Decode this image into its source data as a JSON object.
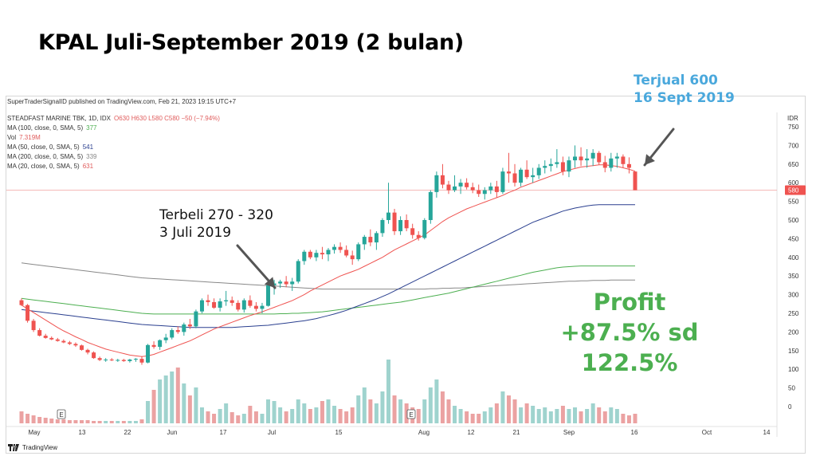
{
  "slide_title": "KPAL Juli-September 2019 (2 bulan)",
  "publish_line": "SuperTraderSignalID published on TradingView.com, Feb 21, 2023 19:15 UTC+7",
  "annotations": {
    "sell_line1": "Terjual 600",
    "sell_line2": "16 Sept 2019",
    "buy_line1": "Terbeli 270 - 320",
    "buy_line2": "3 Juli 2019",
    "profit_line1": "Profit",
    "profit_line2": "+87.5% sd 122.5%"
  },
  "legend": [
    {
      "label": "STEADFAST MARINE TBK, 1D, IDX",
      "value": "O630 H630 L580 C580 −50 (−7.94%)",
      "color": "#e05c5c"
    },
    {
      "label": "MA (100, close, 0, SMA, 5)",
      "value": "377",
      "color": "#4caf50"
    },
    {
      "label": "Vol",
      "value": "7.319M",
      "color": "#e05c5c"
    },
    {
      "label": "MA (50, close, 0, SMA, 5)",
      "value": "541",
      "color": "#2a3f8f"
    },
    {
      "label": "MA (200, close, 0, SMA, 5)",
      "value": "339",
      "color": "#888888"
    },
    {
      "label": "MA (20, close, 0, SMA, 5)",
      "value": "631",
      "color": "#e05c5c"
    }
  ],
  "brand": "TradingView",
  "colors": {
    "up": "#26a69a",
    "down": "#ef5350",
    "ma20": "#ef5350",
    "ma50": "#2a3f8f",
    "ma100": "#4caf50",
    "ma200": "#888888",
    "vol_up": "#9fd3ce",
    "vol_down": "#eba2a2",
    "last_price_tag": "#ef5350"
  },
  "chart_data": {
    "type": "candlestick",
    "currency": "IDR",
    "y_ticks": [
      750,
      700,
      650,
      600,
      550,
      500,
      450,
      400,
      350,
      300,
      250,
      200,
      150,
      100,
      50,
      0
    ],
    "ylim": [
      0,
      750
    ],
    "last_price": 580,
    "x_ticks": [
      "May",
      "13",
      "22",
      "Jun",
      "17",
      "Jul",
      "15",
      "Aug",
      "12",
      "21",
      "Sep",
      "16",
      "Oct",
      "14"
    ],
    "event_markers": [
      "E",
      "E"
    ],
    "ohlc": [
      [
        285,
        290,
        270,
        272
      ],
      [
        272,
        275,
        225,
        230
      ],
      [
        230,
        235,
        200,
        205
      ],
      [
        205,
        210,
        188,
        190
      ],
      [
        190,
        195,
        182,
        184
      ],
      [
        184,
        188,
        178,
        180
      ],
      [
        180,
        184,
        174,
        176
      ],
      [
        176,
        180,
        170,
        172
      ],
      [
        172,
        176,
        165,
        168
      ],
      [
        168,
        172,
        160,
        164
      ],
      [
        164,
        166,
        150,
        152
      ],
      [
        152,
        155,
        140,
        145
      ],
      [
        145,
        148,
        128,
        130
      ],
      [
        130,
        134,
        122,
        125
      ],
      [
        125,
        130,
        120,
        126
      ],
      [
        126,
        130,
        122,
        124
      ],
      [
        124,
        128,
        120,
        125
      ],
      [
        125,
        128,
        120,
        122
      ],
      [
        122,
        128,
        118,
        126
      ],
      [
        126,
        130,
        120,
        128
      ],
      [
        128,
        135,
        112,
        118
      ],
      [
        118,
        168,
        116,
        165
      ],
      [
        165,
        175,
        155,
        160
      ],
      [
        160,
        180,
        152,
        178
      ],
      [
        178,
        195,
        170,
        185
      ],
      [
        185,
        210,
        180,
        205
      ],
      [
        205,
        215,
        195,
        200
      ],
      [
        200,
        225,
        190,
        220
      ],
      [
        220,
        235,
        208,
        215
      ],
      [
        215,
        260,
        210,
        255
      ],
      [
        255,
        290,
        250,
        285
      ],
      [
        285,
        300,
        270,
        280
      ],
      [
        280,
        290,
        262,
        265
      ],
      [
        265,
        290,
        255,
        282
      ],
      [
        282,
        310,
        270,
        285
      ],
      [
        285,
        295,
        270,
        278
      ],
      [
        278,
        285,
        255,
        260
      ],
      [
        260,
        290,
        252,
        285
      ],
      [
        285,
        298,
        265,
        270
      ],
      [
        270,
        280,
        255,
        262
      ],
      [
        262,
        278,
        250,
        270
      ],
      [
        270,
        330,
        268,
        325
      ],
      [
        325,
        340,
        300,
        330
      ],
      [
        330,
        340,
        318,
        335
      ],
      [
        335,
        350,
        320,
        328
      ],
      [
        328,
        345,
        310,
        335
      ],
      [
        335,
        395,
        330,
        390
      ],
      [
        390,
        420,
        380,
        415
      ],
      [
        415,
        420,
        395,
        400
      ],
      [
        400,
        420,
        390,
        412
      ],
      [
        412,
        428,
        395,
        408
      ],
      [
        408,
        425,
        390,
        420
      ],
      [
        420,
        435,
        410,
        428
      ],
      [
        428,
        440,
        412,
        420
      ],
      [
        420,
        432,
        400,
        405
      ],
      [
        405,
        418,
        380,
        395
      ],
      [
        395,
        440,
        390,
        435
      ],
      [
        435,
        460,
        420,
        455
      ],
      [
        455,
        475,
        430,
        440
      ],
      [
        440,
        470,
        420,
        465
      ],
      [
        465,
        505,
        455,
        500
      ],
      [
        500,
        600,
        490,
        520
      ],
      [
        520,
        530,
        460,
        470
      ],
      [
        470,
        510,
        460,
        500
      ],
      [
        500,
        515,
        470,
        478
      ],
      [
        478,
        490,
        450,
        460
      ],
      [
        460,
        470,
        445,
        452
      ],
      [
        452,
        505,
        448,
        500
      ],
      [
        500,
        580,
        490,
        575
      ],
      [
        575,
        630,
        560,
        620
      ],
      [
        620,
        650,
        585,
        595
      ],
      [
        595,
        605,
        570,
        580
      ],
      [
        580,
        620,
        575,
        590
      ],
      [
        590,
        610,
        570,
        600
      ],
      [
        600,
        612,
        582,
        588
      ],
      [
        588,
        600,
        572,
        580
      ],
      [
        580,
        595,
        562,
        570
      ],
      [
        570,
        588,
        555,
        580
      ],
      [
        580,
        600,
        570,
        590
      ],
      [
        590,
        605,
        560,
        575
      ],
      [
        575,
        640,
        570,
        630
      ],
      [
        630,
        680,
        600,
        625
      ],
      [
        625,
        650,
        590,
        600
      ],
      [
        600,
        640,
        590,
        635
      ],
      [
        635,
        660,
        610,
        615
      ],
      [
        615,
        640,
        600,
        620
      ],
      [
        620,
        650,
        610,
        640
      ],
      [
        640,
        660,
        625,
        645
      ],
      [
        645,
        665,
        630,
        650
      ],
      [
        650,
        690,
        640,
        655
      ],
      [
        655,
        670,
        620,
        630
      ],
      [
        630,
        670,
        615,
        660
      ],
      [
        660,
        700,
        640,
        670
      ],
      [
        670,
        695,
        645,
        660
      ],
      [
        660,
        690,
        640,
        665
      ],
      [
        665,
        690,
        645,
        680
      ],
      [
        680,
        685,
        648,
        655
      ],
      [
        655,
        672,
        628,
        640
      ],
      [
        640,
        680,
        630,
        665
      ],
      [
        665,
        680,
        640,
        670
      ],
      [
        670,
        676,
        640,
        650
      ],
      [
        650,
        668,
        625,
        640
      ],
      [
        630,
        630,
        580,
        580
      ]
    ],
    "volume_relative": [
      0.15,
      0.12,
      0.1,
      0.08,
      0.07,
      0.06,
      0.05,
      0.05,
      0.04,
      0.04,
      0.04,
      0.04,
      0.03,
      0.03,
      0.03,
      0.03,
      0.03,
      0.03,
      0.03,
      0.03,
      0.05,
      0.28,
      0.42,
      0.55,
      0.6,
      0.65,
      0.7,
      0.5,
      0.35,
      0.45,
      0.2,
      0.15,
      0.12,
      0.18,
      0.25,
      0.14,
      0.1,
      0.12,
      0.22,
      0.15,
      0.12,
      0.3,
      0.28,
      0.2,
      0.15,
      0.18,
      0.3,
      0.25,
      0.18,
      0.2,
      0.28,
      0.3,
      0.22,
      0.18,
      0.15,
      0.2,
      0.35,
      0.45,
      0.3,
      0.25,
      0.4,
      0.8,
      0.35,
      0.3,
      0.25,
      0.2,
      0.18,
      0.3,
      0.45,
      0.55,
      0.4,
      0.3,
      0.22,
      0.18,
      0.15,
      0.12,
      0.12,
      0.15,
      0.2,
      0.25,
      0.4,
      0.35,
      0.3,
      0.2,
      0.25,
      0.22,
      0.18,
      0.2,
      0.15,
      0.18,
      0.22,
      0.18,
      0.2,
      0.15,
      0.18,
      0.25,
      0.2,
      0.15,
      0.2,
      0.18,
      0.12,
      0.1,
      0.12
    ],
    "ma20": [
      272,
      262,
      252,
      242,
      232,
      222,
      212,
      203,
      195,
      187,
      180,
      172,
      166,
      160,
      154,
      150,
      146,
      142,
      138,
      136,
      134,
      136,
      140,
      146,
      152,
      158,
      164,
      170,
      176,
      184,
      192,
      200,
      208,
      214,
      220,
      226,
      232,
      238,
      244,
      249,
      254,
      260,
      266,
      272,
      278,
      284,
      292,
      300,
      310,
      318,
      326,
      334,
      342,
      350,
      356,
      362,
      368,
      376,
      384,
      392,
      400,
      410,
      420,
      428,
      436,
      444,
      452,
      460,
      472,
      484,
      496,
      506,
      514,
      522,
      530,
      536,
      542,
      548,
      554,
      560,
      566,
      574,
      580,
      588,
      594,
      600,
      606,
      612,
      618,
      624,
      630,
      634,
      638,
      642,
      644,
      646,
      648,
      648,
      646,
      644,
      640,
      636,
      631
    ],
    "ma50": [
      260,
      258,
      256,
      254,
      252,
      250,
      248,
      246,
      244,
      242,
      240,
      238,
      236,
      234,
      232,
      230,
      228,
      226,
      224,
      222,
      220,
      219,
      218,
      217,
      216,
      215,
      214,
      213,
      212,
      212,
      212,
      212,
      212,
      212,
      212,
      212,
      213,
      214,
      215,
      216,
      217,
      218,
      220,
      222,
      224,
      226,
      228,
      230,
      233,
      236,
      240,
      244,
      248,
      253,
      258,
      264,
      270,
      276,
      282,
      288,
      295,
      302,
      310,
      318,
      326,
      334,
      342,
      350,
      358,
      366,
      374,
      382,
      390,
      398,
      406,
      414,
      422,
      430,
      438,
      446,
      454,
      462,
      470,
      478,
      486,
      494,
      500,
      506,
      512,
      518,
      524,
      528,
      532,
      535,
      538,
      540,
      541,
      541,
      541,
      541,
      541,
      541,
      541
    ],
    "ma100": [
      290,
      288,
      286,
      284,
      282,
      280,
      278,
      276,
      274,
      272,
      270,
      268,
      266,
      264,
      262,
      260,
      258,
      256,
      254,
      252,
      250,
      249,
      248,
      248,
      248,
      248,
      248,
      248,
      248,
      248,
      248,
      248,
      248,
      248,
      248,
      248,
      248,
      248,
      248,
      248,
      248,
      248,
      248,
      249,
      249,
      250,
      250,
      251,
      252,
      253,
      254,
      256,
      258,
      260,
      262,
      264,
      266,
      268,
      270,
      272,
      274,
      276,
      278,
      280,
      283,
      286,
      289,
      292,
      295,
      298,
      301,
      304,
      308,
      312,
      316,
      320,
      324,
      328,
      332,
      336,
      340,
      344,
      348,
      352,
      356,
      360,
      363,
      366,
      369,
      372,
      374,
      375,
      376,
      377,
      377,
      377,
      377,
      377,
      377,
      377,
      377,
      377,
      377
    ],
    "ma200": [
      385,
      383,
      381,
      379,
      377,
      375,
      373,
      371,
      369,
      367,
      365,
      363,
      361,
      359,
      357,
      355,
      353,
      351,
      349,
      347,
      345,
      344,
      343,
      342,
      341,
      340,
      339,
      338,
      337,
      336,
      335,
      334,
      333,
      332,
      331,
      330,
      329,
      328,
      327,
      326,
      325,
      324,
      323,
      322,
      321,
      320,
      319,
      318,
      317,
      316,
      315,
      315,
      315,
      315,
      315,
      315,
      315,
      315,
      315,
      315,
      315,
      315,
      315,
      315,
      315,
      315,
      315,
      315,
      316,
      316,
      317,
      317,
      318,
      318,
      319,
      320,
      321,
      322,
      323,
      324,
      325,
      326,
      327,
      328,
      329,
      330,
      331,
      332,
      333,
      334,
      335,
      336,
      336,
      337,
      337,
      338,
      338,
      338,
      339,
      339,
      339,
      339,
      339
    ]
  }
}
